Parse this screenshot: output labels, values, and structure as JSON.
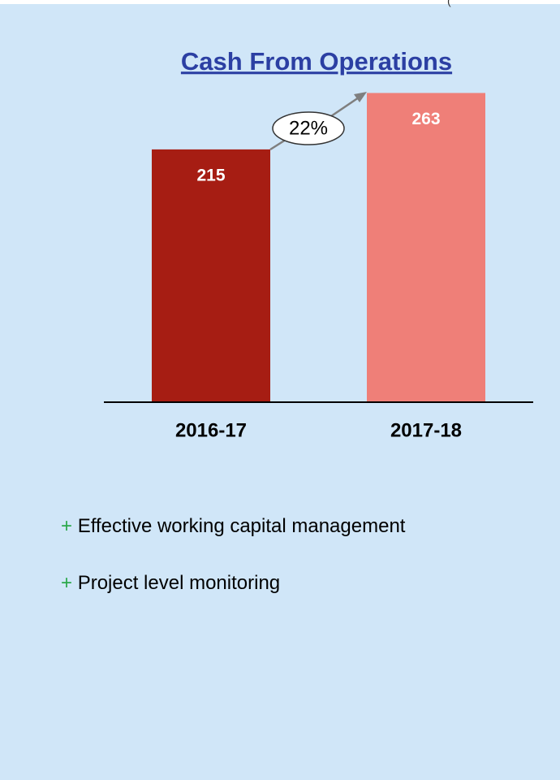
{
  "corner_text": "(",
  "chart_data": {
    "type": "bar",
    "title": "Cash From Operations",
    "categories": [
      "2016-17",
      "2017-18"
    ],
    "values": [
      215,
      263
    ],
    "colors": [
      "#a61d13",
      "#ef7f78"
    ],
    "annotation": "22%"
  },
  "notes": [
    "Effective working capital management",
    "Project level monitoring"
  ]
}
